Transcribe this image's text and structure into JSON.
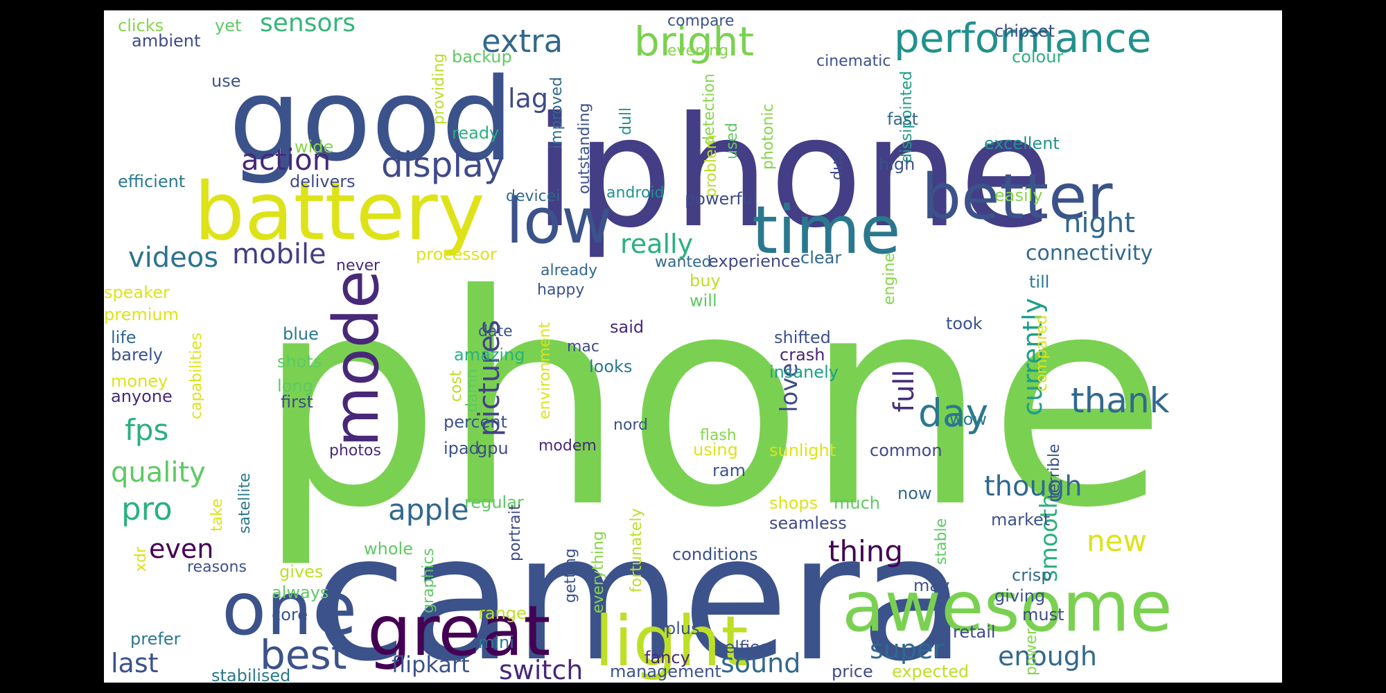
{
  "word_cloud": {
    "background": "#ffffff",
    "frame_background": "#000000",
    "color_scheme": "viridis",
    "words": [
      {
        "text": "phone",
        "color": "#7ad151"
      },
      {
        "text": "camera",
        "color": "#3b528b"
      },
      {
        "text": "iphone",
        "color": "#433e85"
      },
      {
        "text": "good",
        "color": "#3b528b"
      },
      {
        "text": "battery",
        "color": "#dde318"
      },
      {
        "text": "great",
        "color": "#440154"
      },
      {
        "text": "awesome",
        "color": "#7ad151"
      },
      {
        "text": "light",
        "color": "#bddf26"
      },
      {
        "text": "one",
        "color": "#3b528b"
      },
      {
        "text": "better",
        "color": "#3b528b"
      },
      {
        "text": "time",
        "color": "#2a788e"
      },
      {
        "text": "low",
        "color": "#3b528b"
      },
      {
        "text": "mode",
        "color": "#482878"
      },
      {
        "text": "performance",
        "color": "#21918c"
      },
      {
        "text": "bright",
        "color": "#7ad151"
      },
      {
        "text": "display",
        "color": "#3e4a89"
      },
      {
        "text": "best",
        "color": "#3b528b"
      },
      {
        "text": "pictures",
        "color": "#414487"
      },
      {
        "text": "extra",
        "color": "#31688e"
      },
      {
        "text": "action",
        "color": "#482878"
      },
      {
        "text": "thank",
        "color": "#31688e"
      },
      {
        "text": "day",
        "color": "#2a788e"
      },
      {
        "text": "currently",
        "color": "#1f9e89"
      },
      {
        "text": "full",
        "color": "#472d7b"
      },
      {
        "text": "night",
        "color": "#31688e"
      },
      {
        "text": "videos",
        "color": "#2c728e"
      },
      {
        "text": "quality",
        "color": "#5ec962"
      },
      {
        "text": "pro",
        "color": "#2ab07f"
      },
      {
        "text": "fps",
        "color": "#2ab07f"
      },
      {
        "text": "mobile",
        "color": "#433e85"
      },
      {
        "text": "really",
        "color": "#2ab07f"
      },
      {
        "text": "lag",
        "color": "#3e4a89"
      },
      {
        "text": "sensors",
        "color": "#35b779"
      },
      {
        "text": "connectivity",
        "color": "#31688e"
      },
      {
        "text": "apple",
        "color": "#31688e"
      },
      {
        "text": "even",
        "color": "#440154"
      },
      {
        "text": "thing",
        "color": "#440154"
      },
      {
        "text": "though",
        "color": "#31688e"
      },
      {
        "text": "smooth",
        "color": "#2ab07f"
      },
      {
        "text": "new",
        "color": "#dde318"
      },
      {
        "text": "super",
        "color": "#31688e"
      },
      {
        "text": "enough",
        "color": "#31688e"
      },
      {
        "text": "sound",
        "color": "#31688e"
      },
      {
        "text": "switch",
        "color": "#482878"
      },
      {
        "text": "flipkart",
        "color": "#3b528b"
      },
      {
        "text": "last",
        "color": "#3b528b"
      },
      {
        "text": "love",
        "color": "#3e4a89"
      },
      {
        "text": "clicks",
        "color": "#86d549"
      },
      {
        "text": "yet",
        "color": "#5ec962"
      },
      {
        "text": "ambient",
        "color": "#3e4a89"
      },
      {
        "text": "compare",
        "color": "#3b528b"
      },
      {
        "text": "evening",
        "color": "#86d549"
      },
      {
        "text": "cinematic",
        "color": "#3b528b"
      },
      {
        "text": "chipset",
        "color": "#3e4a89"
      },
      {
        "text": "colour",
        "color": "#2ab07f"
      },
      {
        "text": "backup",
        "color": "#5ec962"
      },
      {
        "text": "use",
        "color": "#3b528b"
      },
      {
        "text": "providing",
        "color": "#bddf26"
      },
      {
        "text": "ready",
        "color": "#2ab07f"
      },
      {
        "text": "improved",
        "color": "#31688e"
      },
      {
        "text": "outstanding",
        "color": "#3b528b"
      },
      {
        "text": "dull",
        "color": "#21918c"
      },
      {
        "text": "detection",
        "color": "#86d549"
      },
      {
        "text": "problem",
        "color": "#bddf26"
      },
      {
        "text": "used",
        "color": "#5ec962"
      },
      {
        "text": "photonic",
        "color": "#86d549"
      },
      {
        "text": "dissipointed",
        "color": "#1f9e89"
      },
      {
        "text": "fast",
        "color": "#31688e"
      },
      {
        "text": "dual",
        "color": "#3e4a89"
      },
      {
        "text": "high",
        "color": "#3b528b"
      },
      {
        "text": "excellent",
        "color": "#21918c"
      },
      {
        "text": "wide",
        "color": "#86d549"
      },
      {
        "text": "efficient",
        "color": "#2a788e"
      },
      {
        "text": "delivers",
        "color": "#3e4a89"
      },
      {
        "text": "devicei",
        "color": "#31688e"
      },
      {
        "text": "android",
        "color": "#21918c"
      },
      {
        "text": "powerful",
        "color": "#3e4a89"
      },
      {
        "text": "easily",
        "color": "#86d549"
      },
      {
        "text": "processor",
        "color": "#dde318"
      },
      {
        "text": "already",
        "color": "#31688e"
      },
      {
        "text": "never",
        "color": "#482878"
      },
      {
        "text": "wanted",
        "color": "#31688e"
      },
      {
        "text": "experience",
        "color": "#3e4a89"
      },
      {
        "text": "clear",
        "color": "#31688e"
      },
      {
        "text": "engine",
        "color": "#86d549"
      },
      {
        "text": "till",
        "color": "#2a788e"
      },
      {
        "text": "happy",
        "color": "#3b528b"
      },
      {
        "text": "buy",
        "color": "#bddf26"
      },
      {
        "text": "will",
        "color": "#5ec962"
      },
      {
        "text": "took",
        "color": "#3b528b"
      },
      {
        "text": "speaker",
        "color": "#dde318"
      },
      {
        "text": "premium",
        "color": "#dde318"
      },
      {
        "text": "capabilities",
        "color": "#dde318"
      },
      {
        "text": "life",
        "color": "#31688e"
      },
      {
        "text": "blue",
        "color": "#2a788e"
      },
      {
        "text": "date",
        "color": "#3b528b"
      },
      {
        "text": "said",
        "color": "#482878"
      },
      {
        "text": "mac",
        "color": "#3e4a89"
      },
      {
        "text": "shifted",
        "color": "#3b528b"
      },
      {
        "text": "compared",
        "color": "#dde318"
      },
      {
        "text": "barely",
        "color": "#3b528b"
      },
      {
        "text": "amazing",
        "color": "#2ab07f"
      },
      {
        "text": "shots",
        "color": "#5ec962"
      },
      {
        "text": "environment",
        "color": "#dde318"
      },
      {
        "text": "looks",
        "color": "#2a788e"
      },
      {
        "text": "crash",
        "color": "#482878"
      },
      {
        "text": "insanely",
        "color": "#1f9e89"
      },
      {
        "text": "money",
        "color": "#dde318"
      },
      {
        "text": "long",
        "color": "#5ec962"
      },
      {
        "text": "anyone",
        "color": "#482878"
      },
      {
        "text": "first",
        "color": "#3e4a89"
      },
      {
        "text": "cost",
        "color": "#bddf26"
      },
      {
        "text": "damn",
        "color": "#5ec962"
      },
      {
        "text": "nord",
        "color": "#3b528b"
      },
      {
        "text": "wow",
        "color": "#2a788e"
      },
      {
        "text": "percent",
        "color": "#3b528b"
      },
      {
        "text": "flash",
        "color": "#86d549"
      },
      {
        "text": "terrible",
        "color": "#3b528b"
      },
      {
        "text": "photos",
        "color": "#482878"
      },
      {
        "text": "ipad",
        "color": "#3b528b"
      },
      {
        "text": "gpu",
        "color": "#3e4a89"
      },
      {
        "text": "modem",
        "color": "#482878"
      },
      {
        "text": "using",
        "color": "#dde318"
      },
      {
        "text": "sunlight",
        "color": "#dde318"
      },
      {
        "text": "common",
        "color": "#3e4a89"
      },
      {
        "text": "satellite",
        "color": "#2a788e"
      },
      {
        "text": "take",
        "color": "#dde318"
      },
      {
        "text": "ram",
        "color": "#3b528b"
      },
      {
        "text": "regular",
        "color": "#5ec962"
      },
      {
        "text": "portrait",
        "color": "#3e4a89"
      },
      {
        "text": "fortunately",
        "color": "#bddf26"
      },
      {
        "text": "now",
        "color": "#31688e"
      },
      {
        "text": "shops",
        "color": "#dde318"
      },
      {
        "text": "much",
        "color": "#5ec962"
      },
      {
        "text": "seamless",
        "color": "#3e4a89"
      },
      {
        "text": "market",
        "color": "#3b528b"
      },
      {
        "text": "xdr",
        "color": "#dde318"
      },
      {
        "text": "reasons",
        "color": "#3b528b"
      },
      {
        "text": "graphics",
        "color": "#5ec962"
      },
      {
        "text": "getting",
        "color": "#3b528b"
      },
      {
        "text": "everything",
        "color": "#86d549"
      },
      {
        "text": "whole",
        "color": "#5ec962"
      },
      {
        "text": "conditions",
        "color": "#3b528b"
      },
      {
        "text": "stable",
        "color": "#5ec962"
      },
      {
        "text": "crisp",
        "color": "#31688e"
      },
      {
        "text": "gives",
        "color": "#bddf26"
      },
      {
        "text": "may",
        "color": "#3b528b"
      },
      {
        "text": "giving",
        "color": "#3b528b"
      },
      {
        "text": "always",
        "color": "#5ec962"
      },
      {
        "text": "range",
        "color": "#bddf26"
      },
      {
        "text": "must",
        "color": "#3e4a89"
      },
      {
        "text": "core",
        "color": "#3b528b"
      },
      {
        "text": "mini",
        "color": "#2a788e"
      },
      {
        "text": "plus",
        "color": "#3b528b"
      },
      {
        "text": "retail",
        "color": "#3e4a89"
      },
      {
        "text": "prefer",
        "color": "#2a788e"
      },
      {
        "text": "selfies",
        "color": "#3b528b"
      },
      {
        "text": "fancy",
        "color": "#482878"
      },
      {
        "text": "power",
        "color": "#86d549"
      },
      {
        "text": "stabilised",
        "color": "#2a788e"
      },
      {
        "text": "management",
        "color": "#3b528b"
      },
      {
        "text": "price",
        "color": "#3e4a89"
      },
      {
        "text": "expected",
        "color": "#bddf26"
      }
    ]
  }
}
